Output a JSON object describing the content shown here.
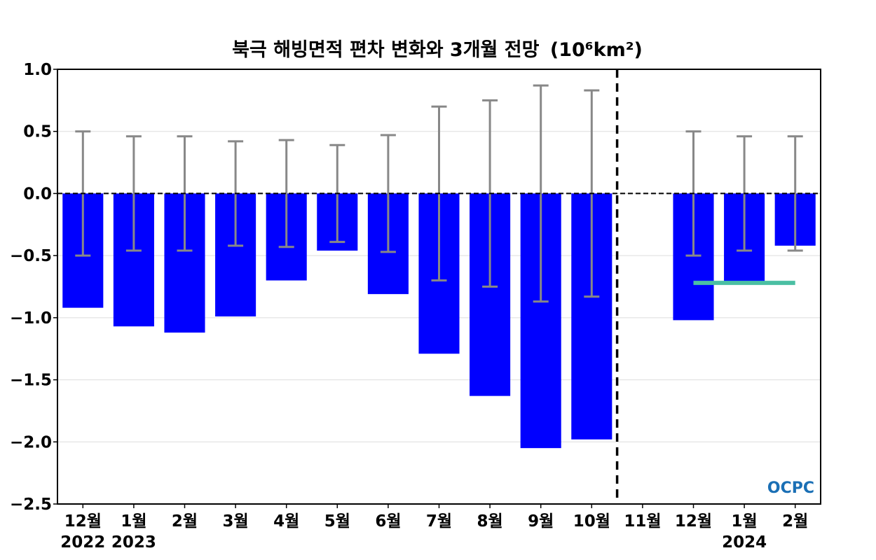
{
  "chart_data": {
    "type": "bar",
    "title": "북극 해빙면적 편차 변화와 3개월 전망",
    "title_unit": "(10⁶km²)",
    "categories": [
      "12월",
      "1월",
      "2월",
      "3월",
      "4월",
      "5월",
      "6월",
      "7월",
      "8월",
      "9월",
      "10월",
      "11월",
      "12월",
      "1월",
      "2월"
    ],
    "year_labels": [
      {
        "index": 0,
        "label": "2022"
      },
      {
        "index": 1,
        "label": "2023"
      },
      {
        "index": 13,
        "label": "2024"
      }
    ],
    "values": [
      -0.92,
      -1.07,
      -1.12,
      -0.99,
      -0.7,
      -0.46,
      -0.81,
      -1.29,
      -1.63,
      -2.05,
      -1.98,
      null,
      -1.02,
      -0.71,
      -0.42
    ],
    "error_bars": [
      0.5,
      0.46,
      0.46,
      0.42,
      0.43,
      0.39,
      0.47,
      0.7,
      0.75,
      0.87,
      0.83,
      null,
      0.5,
      0.46,
      0.46
    ],
    "forecast_line": {
      "from_index": 12,
      "to_index": 14,
      "value": -0.72,
      "color": "#4bbfa3"
    },
    "divider_after_index": 10.5,
    "ylim": [
      -2.5,
      1.0
    ],
    "yticks": [
      1.0,
      0.5,
      0.0,
      -0.5,
      -1.0,
      -1.5,
      -2.0,
      -2.5
    ],
    "ytick_labels": [
      "1.0",
      "0.5",
      "0.0",
      "−0.5",
      "−1.0",
      "−1.5",
      "−2.0",
      "−2.5"
    ],
    "grid": true,
    "colors": {
      "bar": "#0000ff",
      "error": "#888888",
      "divider": "#000000"
    }
  },
  "logo": {
    "text": "OCPC",
    "color": "#1a6fb5"
  }
}
